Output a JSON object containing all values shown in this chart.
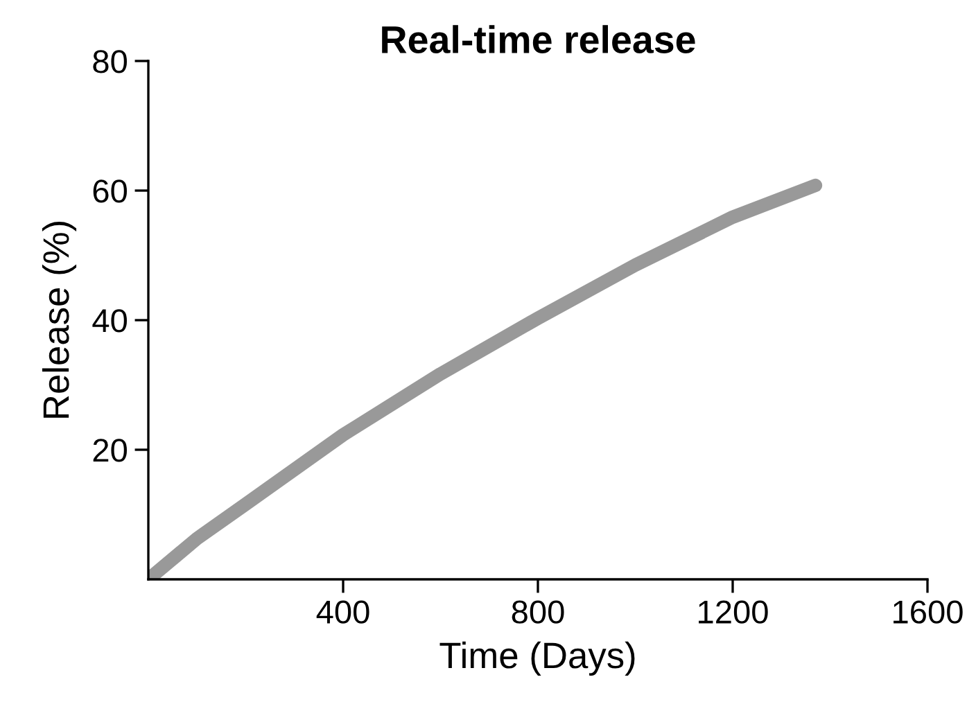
{
  "chart_data": {
    "type": "line",
    "title": "Real-time release",
    "xlabel": "Time (Days)",
    "ylabel": "Release (%)",
    "x": [
      0,
      100,
      200,
      400,
      600,
      800,
      1000,
      1200,
      1370
    ],
    "series": [
      {
        "color": "#999999",
        "values": [
          0,
          6.3,
          11.6,
          22.3,
          31.7,
          40.3,
          48.5,
          55.9,
          60.8
        ]
      }
    ],
    "xlim": [
      0,
      1600
    ],
    "ylim": [
      0,
      80
    ],
    "xticks": [
      400,
      800,
      1200,
      1600
    ],
    "yticks": [
      20,
      40,
      60,
      80
    ],
    "grid": false,
    "legend": false
  }
}
